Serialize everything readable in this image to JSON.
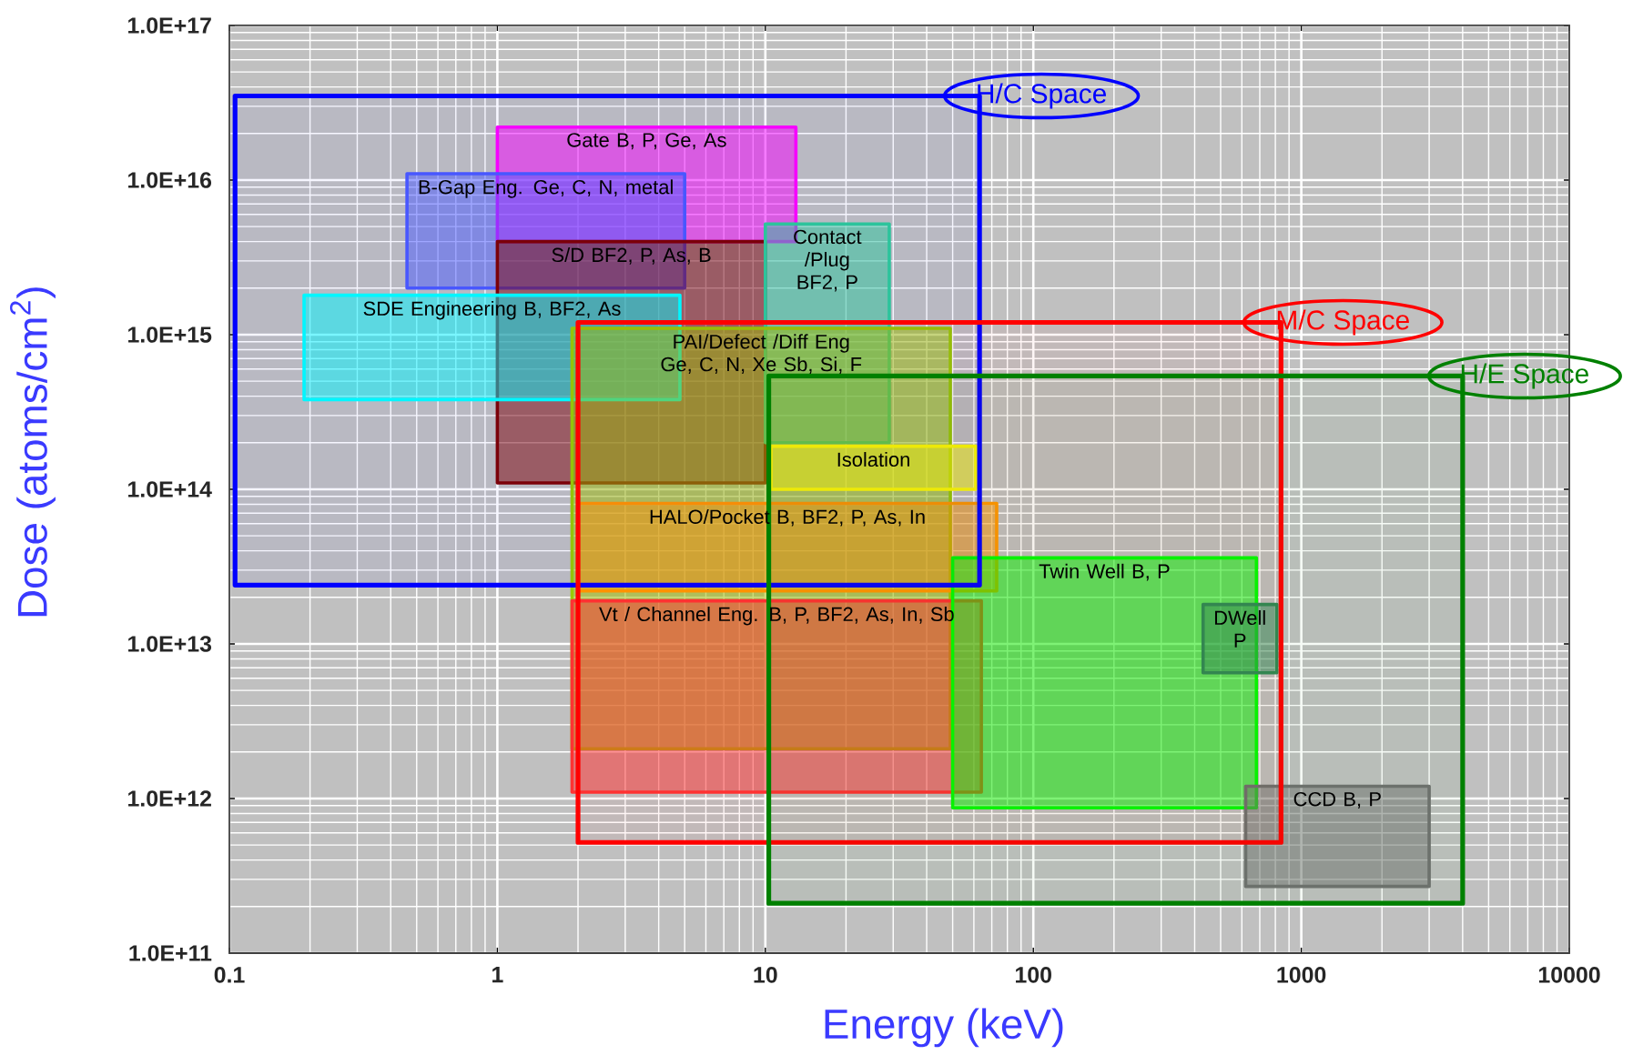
{
  "chart_data": {
    "type": "area",
    "xlabel": "Energy (keV)",
    "ylabel": "Dose (atoms/cm$^{2}$)",
    "log": "xy",
    "xlim": [
      0.1,
      10000
    ],
    "ylim": [
      100000000000.0,
      1e+17
    ],
    "xticks": [
      0.1,
      1,
      10,
      100,
      1000,
      10000
    ],
    "yticks": [
      {
        "value": 100000000000.0,
        "label": "1.0E+11"
      },
      {
        "value": 1000000000000.0,
        "label": "1.0E+12"
      },
      {
        "value": 10000000000000.0,
        "label": "1.0E+13"
      },
      {
        "value": 100000000000000.0,
        "label": "1.0E+14"
      },
      {
        "value": 1000000000000000.0,
        "label": "1.0E+15"
      },
      {
        "value": 1e+16,
        "label": "1.0E+16"
      },
      {
        "value": 1e+17,
        "label": "1.0E+17"
      }
    ],
    "grid": true,
    "legend": "top right",
    "series": [
      {
        "name": "Gate B, P, Ge, As",
        "color": "#ff00ff",
        "x": [
          13,
          1.0,
          1.0,
          13
        ],
        "values": [
          2.2e+16,
          2.2e+16,
          4000000000000000.0,
          4000000000000000.0
        ]
      },
      {
        "name": "B-Gap Eng. Ge, C, N, metal",
        "color": "#4b5bff",
        "x": [
          5.0,
          0.46,
          0.46,
          5.0
        ],
        "values": [
          1.1e+16,
          1.1e+16,
          2000000000000000.0,
          2000000000000000.0
        ]
      },
      {
        "name": "S/D BF2, P, As, B",
        "color": "#800000",
        "x": [
          10,
          1.0,
          1.0,
          10
        ],
        "values": [
          4000000000000000.0,
          4000000000000000.0,
          110000000000000.0,
          110000000000000.0
        ]
      },
      {
        "name": "SDE Engineering B, BF2, As",
        "color": "#00ffff",
        "x": [
          4.8,
          0.19,
          0.19,
          4.8
        ],
        "values": [
          1800000000000000.0,
          1800000000000000.0,
          380000000000000.0,
          380000000000000.0
        ]
      },
      {
        "name": "Contact /Plug BF2, P",
        "color": "#2ecc99",
        "x": [
          29,
          10,
          10,
          29
        ],
        "values": [
          5200000000000000.0,
          5200000000000000.0,
          200000000000000.0,
          200000000000000.0
        ]
      },
      {
        "name": "PAI/Defect /Diff Eng Ge, C, N, Xe Sb, Si, F",
        "color": "#99cc00",
        "x": [
          49,
          1.9,
          1.9,
          49
        ],
        "values": [
          1100000000000000.0,
          1100000000000000.0,
          2100000000000.0,
          2100000000000.0
        ]
      },
      {
        "name": "Isolation",
        "color": "#ffff00",
        "x": [
          61,
          10.5,
          10.5,
          61
        ],
        "values": [
          190000000000000.0,
          190000000000000.0,
          100000000000000.0,
          100000000000000.0
        ]
      },
      {
        "name": "HALO/Pocket B, BF2, P, As, In",
        "color": "#ff9900",
        "x": [
          73,
          2.0,
          2.0,
          73
        ],
        "values": [
          81000000000000.0,
          81000000000000.0,
          22000000000000.0,
          22000000000000.0
        ]
      },
      {
        "name": "Vt / Channel Eng. B, P, BF2, As, In, Sb",
        "color": "#ff3333",
        "x": [
          64,
          1.9,
          1.9,
          64
        ],
        "values": [
          19000000000000.0,
          19000000000000.0,
          1100000000000.0,
          1100000000000.0
        ]
      },
      {
        "name": "Twin Well B, P",
        "color": "#00ff00",
        "x": [
          680,
          50,
          50,
          680
        ],
        "values": [
          36000000000000.0,
          36000000000000.0,
          870000000000.0,
          870000000000.0
        ]
      },
      {
        "name": "DWell P",
        "color": "#2e8b57",
        "x": [
          810,
          430,
          430,
          810
        ],
        "values": [
          18000000000000.0,
          18000000000000.0,
          6500000000000.0,
          6500000000000.0
        ]
      },
      {
        "name": "CCD B, P",
        "color": "#707070",
        "x": [
          3000,
          620,
          620,
          3000
        ],
        "values": [
          1200000000000.0,
          1200000000000.0,
          270000000000.0,
          270000000000.0
        ]
      },
      {
        "name": "H/C Space",
        "color": "#0000ff",
        "x": [
          63,
          0.105,
          0.105,
          63,
          63
        ],
        "values": [
          3.5e+16,
          3.5e+16,
          24000000000000.0,
          24000000000000.0,
          3.5e+16
        ]
      },
      {
        "name": "M/C Space",
        "color": "#ff0000",
        "x": [
          840,
          2.0,
          2.0,
          840,
          840
        ],
        "values": [
          1200000000000000.0,
          1200000000000000.0,
          520000000000.0,
          520000000000.0,
          1200000000000000.0
        ]
      },
      {
        "name": "H/E Space",
        "color": "#008000",
        "x": [
          4000,
          10.3,
          10.3,
          4000,
          4000
        ],
        "values": [
          540000000000000.0,
          540000000000000.0,
          210000000000.0,
          210000000000.0,
          540000000000000.0
        ]
      }
    ]
  }
}
